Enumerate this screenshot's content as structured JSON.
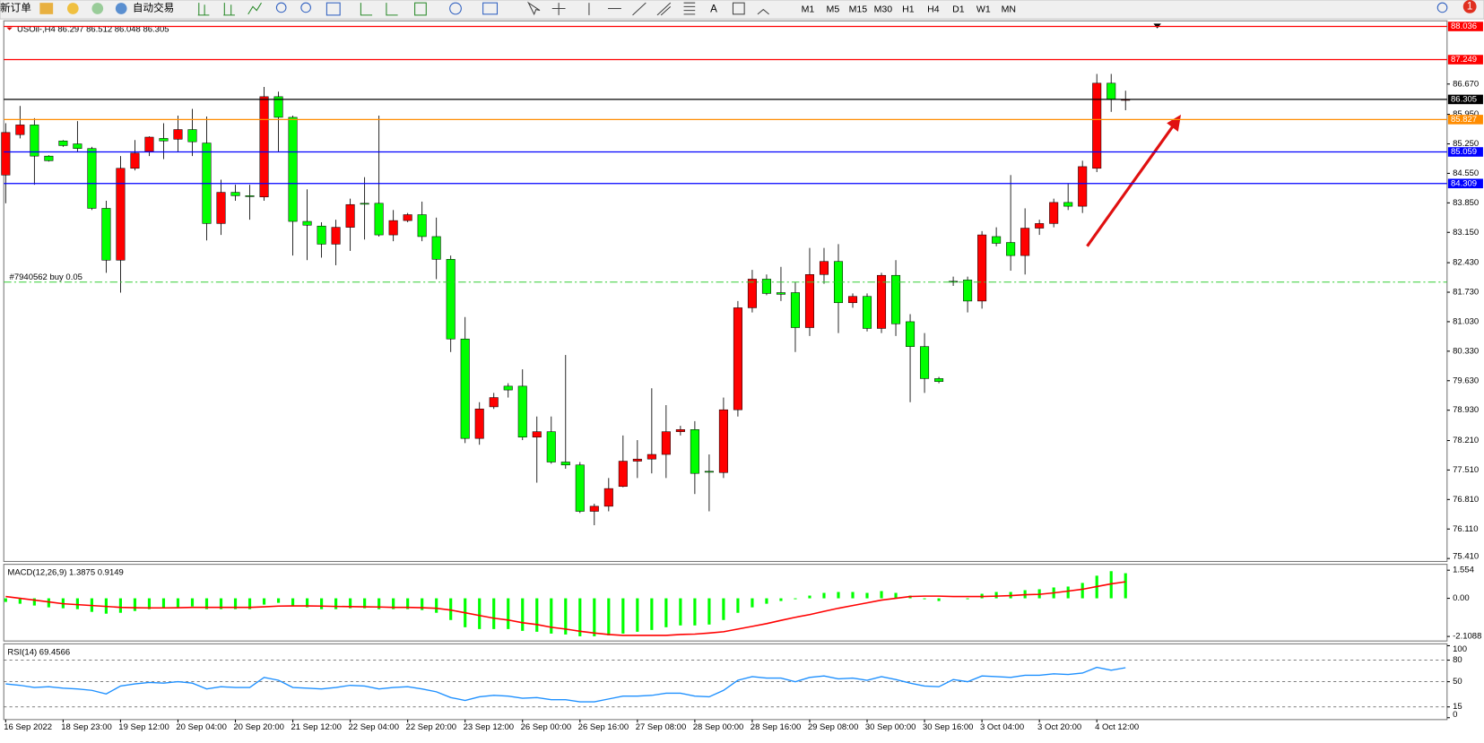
{
  "toolbar": {
    "new_order": "新订单",
    "auto_trading": "自动交易",
    "timeframes": [
      "M1",
      "M5",
      "M15",
      "M30",
      "H1",
      "H4",
      "D1",
      "W1",
      "MN"
    ],
    "badge": "1"
  },
  "chart_data": [
    {
      "type": "candlestick",
      "title": "USOil-,H4  86.297 86.512 86.048 86.305",
      "categories": [
        "16 Sep 2022",
        null,
        null,
        null,
        "18 Sep 23:00",
        null,
        null,
        null,
        "19 Sep 12:00",
        null,
        null,
        null,
        "20 Sep 04:00",
        null,
        null,
        null,
        "20 Sep 20:00",
        null,
        null,
        null,
        "21 Sep 12:00",
        null,
        null,
        null,
        "22 Sep 04:00",
        null,
        null,
        null,
        "22 Sep 20:00",
        null,
        null,
        null,
        "23 Sep 12:00",
        null,
        null,
        null,
        "26 Sep 00:00",
        null,
        null,
        null,
        "26 Sep 16:00",
        null,
        null,
        null,
        "27 Sep 08:00",
        null,
        null,
        null,
        "28 Sep 00:00",
        null,
        null,
        null,
        "28 Sep 16:00",
        null,
        null,
        null,
        "29 Sep 08:00",
        null,
        null,
        null,
        "30 Sep 00:00",
        null,
        null,
        null,
        "30 Sep 16:00",
        null,
        null,
        null,
        "3 Oct 04:00",
        null,
        null,
        null,
        "3 Oct 20:00",
        null,
        null,
        null,
        "4 Oct 12:00",
        null,
        null
      ],
      "open": [
        84.51,
        85.47,
        85.7,
        84.96,
        85.32,
        85.25,
        85.14,
        83.72,
        82.49,
        84.67,
        85.07,
        85.38,
        85.36,
        85.59,
        85.27,
        83.36,
        84.1,
        84.02,
        83.99,
        86.37,
        85.88,
        83.41,
        83.3,
        82.87,
        83.27,
        83.84,
        83.84,
        83.09,
        83.43,
        83.57,
        83.05,
        82.51,
        80.62,
        78.26,
        79.01,
        79.5,
        79.5,
        78.29,
        78.42,
        77.7,
        77.63,
        76.53,
        76.65,
        77.12,
        77.72,
        77.77,
        77.88,
        78.42,
        78.47,
        77.48,
        77.45,
        78.94,
        81.36,
        82.04,
        81.72,
        81.72,
        80.89,
        82.15,
        82.46,
        81.48,
        81.63,
        80.87,
        82.13,
        81.03,
        80.44,
        79.68,
        81.99,
        82.02,
        81.52,
        83.05,
        82.91,
        82.6,
        83.25,
        83.36,
        83.86,
        83.77,
        84.67,
        86.69,
        86.297
      ],
      "high": [
        85.74,
        86.15,
        85.86,
        84.98,
        85.34,
        85.79,
        85.18,
        83.9,
        84.96,
        85.34,
        85.43,
        85.74,
        85.92,
        86.08,
        85.9,
        84.4,
        84.28,
        84.28,
        86.6,
        86.49,
        85.92,
        84.17,
        83.39,
        83.45,
        83.95,
        84.46,
        85.92,
        83.68,
        83.61,
        83.88,
        83.5,
        82.6,
        81.14,
        79.12,
        79.34,
        79.57,
        79.9,
        78.78,
        78.78,
        80.24,
        77.7,
        76.71,
        77.32,
        78.33,
        78.22,
        79.45,
        79.05,
        78.56,
        78.67,
        77.88,
        79.23,
        81.52,
        82.26,
        82.15,
        82.33,
        81.97,
        82.78,
        82.78,
        82.87,
        81.7,
        81.7,
        82.19,
        82.49,
        81.21,
        80.76,
        79.72,
        82.1,
        82.1,
        83.18,
        83.27,
        84.51,
        83.72,
        83.45,
        83.95,
        84.31,
        84.85,
        86.91,
        86.91,
        86.512
      ],
      "low": [
        83.84,
        85.38,
        84.28,
        84.83,
        85.18,
        85.07,
        83.68,
        82.19,
        81.72,
        84.62,
        84.96,
        84.89,
        85.07,
        84.96,
        82.96,
        83.09,
        83.9,
        83.45,
        83.9,
        85.07,
        82.6,
        82.49,
        82.55,
        82.37,
        82.71,
        82.98,
        83.05,
        82.94,
        83.39,
        82.94,
        82.04,
        80.31,
        78.15,
        78.11,
        78.96,
        79.23,
        78.22,
        77.21,
        77.66,
        77.54,
        76.49,
        76.2,
        76.53,
        77.1,
        77.32,
        77.43,
        77.32,
        78.33,
        76.94,
        76.53,
        77.32,
        78.78,
        81.25,
        81.66,
        81.52,
        80.31,
        80.69,
        81.93,
        80.76,
        81.36,
        80.8,
        80.76,
        80.69,
        79.12,
        79.34,
        79.57,
        81.88,
        81.25,
        81.34,
        82.82,
        82.24,
        82.15,
        83.09,
        83.27,
        83.68,
        83.61,
        84.58,
        86.01,
        86.048
      ],
      "close": [
        85.52,
        85.7,
        84.96,
        84.85,
        85.21,
        85.14,
        83.72,
        82.49,
        84.67,
        85.03,
        85.41,
        85.32,
        85.59,
        85.3,
        83.36,
        84.1,
        84.02,
        84.01,
        86.37,
        85.88,
        83.41,
        83.32,
        82.87,
        83.27,
        83.81,
        83.83,
        83.09,
        83.43,
        83.57,
        83.05,
        82.51,
        80.62,
        78.26,
        78.96,
        79.23,
        79.41,
        78.29,
        78.42,
        77.7,
        77.63,
        76.53,
        76.65,
        77.07,
        77.72,
        77.77,
        77.88,
        78.42,
        78.47,
        77.43,
        77.47,
        78.94,
        81.36,
        82.04,
        81.7,
        81.68,
        80.89,
        82.15,
        82.46,
        81.48,
        81.63,
        80.87,
        82.13,
        80.98,
        80.44,
        79.68,
        79.61,
        81.98,
        81.52,
        83.09,
        82.89,
        82.6,
        83.25,
        83.36,
        83.86,
        83.77,
        84.71,
        86.69,
        86.31,
        86.305
      ],
      "up_color": "#ff0000",
      "down_color": "#00ff00",
      "ylim": [
        75.34,
        88.17
      ],
      "yticks": [
        {
          "value": 86.67,
          "label": "86.670"
        },
        {
          "value": 85.95,
          "label": "85.950"
        },
        {
          "value": 85.25,
          "label": "85.250"
        },
        {
          "value": 84.55,
          "label": "84.550"
        },
        {
          "value": 83.85,
          "label": "83.850"
        },
        {
          "value": 83.15,
          "label": "83.150"
        },
        {
          "value": 82.43,
          "label": "82.430"
        },
        {
          "value": 81.73,
          "label": "81.730"
        },
        {
          "value": 81.03,
          "label": "81.030"
        },
        {
          "value": 80.33,
          "label": "80.330"
        },
        {
          "value": 79.63,
          "label": "79.630"
        },
        {
          "value": 78.93,
          "label": "78.930"
        },
        {
          "value": 78.21,
          "label": "78.210"
        },
        {
          "value": 77.51,
          "label": "77.510"
        },
        {
          "value": 76.81,
          "label": "76.810"
        },
        {
          "value": 76.11,
          "label": "76.110"
        },
        {
          "value": 75.41,
          "label": "75.410"
        }
      ],
      "lines": [
        {
          "value": 88.036,
          "color": "#ff0000"
        },
        {
          "value": 87.249,
          "color": "#ff0000"
        },
        {
          "value": 86.305,
          "color": "#000000"
        },
        {
          "value": 85.827,
          "color": "#ff8c00"
        },
        {
          "value": 85.059,
          "color": "#0000ff"
        },
        {
          "value": 84.309,
          "color": "#0000ff"
        }
      ],
      "order": {
        "label": "#7940562 buy 0.05",
        "value": 81.97,
        "color": "#32cd32"
      }
    },
    {
      "type": "macd",
      "title": "MACD(12,26,9) 1.3875 0.9149",
      "histogram": [
        -0.2,
        -0.3,
        -0.4,
        -0.5,
        -0.55,
        -0.6,
        -0.75,
        -0.85,
        -0.8,
        -0.7,
        -0.6,
        -0.55,
        -0.5,
        -0.45,
        -0.6,
        -0.6,
        -0.6,
        -0.6,
        -0.35,
        -0.25,
        -0.45,
        -0.5,
        -0.6,
        -0.6,
        -0.55,
        -0.55,
        -0.6,
        -0.6,
        -0.6,
        -0.65,
        -0.8,
        -1.2,
        -1.6,
        -1.7,
        -1.7,
        -1.7,
        -1.8,
        -1.85,
        -1.95,
        -2.0,
        -2.1,
        -2.1,
        -2.05,
        -1.95,
        -1.85,
        -1.75,
        -1.6,
        -1.5,
        -1.5,
        -1.45,
        -1.2,
        -0.8,
        -0.5,
        -0.3,
        -0.15,
        -0.05,
        0.15,
        0.3,
        0.35,
        0.35,
        0.3,
        0.4,
        0.3,
        0.15,
        -0.05,
        -0.15,
        0.0,
        -0.05,
        0.25,
        0.35,
        0.35,
        0.45,
        0.5,
        0.6,
        0.65,
        0.85,
        1.25,
        1.5,
        1.3875
      ],
      "signal": [
        0.1,
        0.0,
        -0.1,
        -0.2,
        -0.3,
        -0.35,
        -0.4,
        -0.45,
        -0.5,
        -0.52,
        -0.53,
        -0.53,
        -0.52,
        -0.5,
        -0.5,
        -0.5,
        -0.5,
        -0.5,
        -0.47,
        -0.43,
        -0.42,
        -0.42,
        -0.43,
        -0.45,
        -0.46,
        -0.47,
        -0.48,
        -0.5,
        -0.5,
        -0.52,
        -0.55,
        -0.65,
        -0.8,
        -0.95,
        -1.1,
        -1.2,
        -1.35,
        -1.45,
        -1.6,
        -1.7,
        -1.82,
        -1.92,
        -2.0,
        -2.05,
        -2.05,
        -2.05,
        -2.05,
        -2.0,
        -1.98,
        -1.92,
        -1.85,
        -1.7,
        -1.55,
        -1.4,
        -1.22,
        -1.05,
        -0.9,
        -0.72,
        -0.55,
        -0.4,
        -0.25,
        -0.1,
        0.0,
        0.1,
        0.12,
        0.12,
        0.1,
        0.1,
        0.1,
        0.12,
        0.15,
        0.2,
        0.22,
        0.3,
        0.4,
        0.5,
        0.65,
        0.8,
        0.9149
      ],
      "histogram_color": "#00ff00",
      "signal_color": "#ff0000",
      "ylim": [
        -2.36,
        1.88
      ],
      "yticks": [
        1.554,
        {
          "value": 0,
          "label": "0.00"
        },
        -2.1088
      ]
    },
    {
      "type": "line",
      "title": "RSI(14) 69.4566",
      "values": [
        47,
        45,
        42,
        43,
        41,
        40,
        38,
        33,
        44,
        47,
        49,
        48,
        50,
        48,
        40,
        43,
        42,
        42,
        56,
        52,
        42,
        41,
        40,
        42,
        45,
        44,
        40,
        42,
        43,
        40,
        36,
        28,
        24,
        29,
        31,
        30,
        27,
        28,
        25,
        25,
        22,
        22,
        26,
        30,
        30,
        31,
        34,
        34,
        30,
        29,
        38,
        52,
        57,
        55,
        55,
        50,
        56,
        58,
        54,
        55,
        52,
        57,
        53,
        48,
        44,
        43,
        53,
        50,
        58,
        57,
        56,
        59,
        59,
        61,
        60,
        62,
        70,
        66,
        69.4566
      ],
      "color": "#1e90ff",
      "ylim": [
        0,
        100
      ],
      "yticks": [
        100,
        80,
        50,
        15,
        0
      ]
    }
  ]
}
